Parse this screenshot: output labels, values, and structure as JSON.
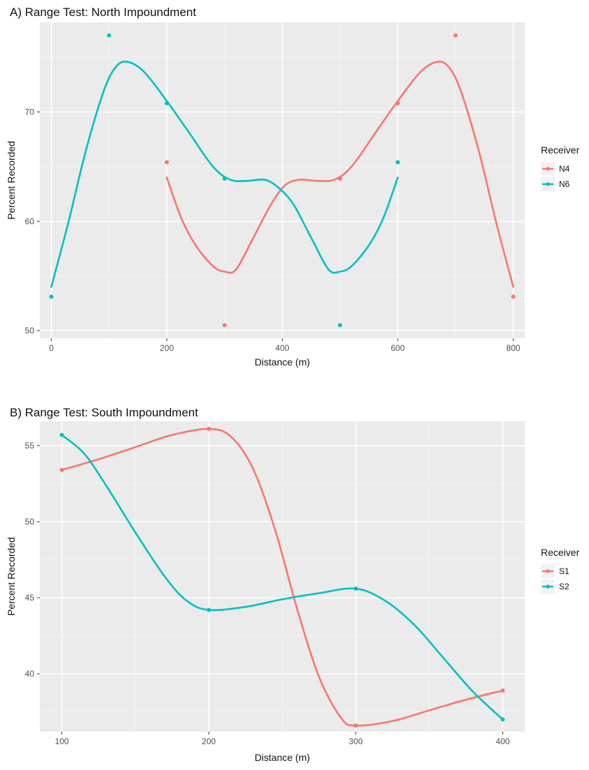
{
  "chart_data": [
    {
      "type": "line",
      "title": "A) Range Test: North Impoundment",
      "xlabel": "Distance (m)",
      "ylabel": "Percent Recorded",
      "xlim": [
        -20,
        820
      ],
      "ylim": [
        49.3,
        78.2
      ],
      "x_ticks": [
        0,
        200,
        400,
        600,
        800
      ],
      "y_ticks": [
        50,
        60,
        70
      ],
      "grid": true,
      "legend": {
        "title": "Receiver",
        "position": "right"
      },
      "series": [
        {
          "name": "N4",
          "color": "#F8766D",
          "points": [
            [
              200,
              65.4
            ],
            [
              300,
              50.5
            ],
            [
              500,
              63.9
            ],
            [
              600,
              70.8
            ],
            [
              700,
              77.0
            ],
            [
              800,
              53.1
            ]
          ],
          "smooth": [
            [
              200,
              64.0
            ],
            [
              225,
              60.3
            ],
            [
              250,
              57.8
            ],
            [
              280,
              55.9
            ],
            [
              300,
              55.4
            ],
            [
              320,
              55.6
            ],
            [
              350,
              58.5
            ],
            [
              380,
              61.5
            ],
            [
              405,
              63.3
            ],
            [
              430,
              63.8
            ],
            [
              460,
              63.7
            ],
            [
              490,
              63.8
            ],
            [
              520,
              65.0
            ],
            [
              560,
              68.0
            ],
            [
              600,
              71.0
            ],
            [
              640,
              73.7
            ],
            [
              670,
              74.6
            ],
            [
              690,
              74.0
            ],
            [
              710,
              71.8
            ],
            [
              740,
              66.5
            ],
            [
              770,
              60.0
            ],
            [
              800,
              54.0
            ]
          ]
        },
        {
          "name": "N6",
          "color": "#00BFC4",
          "points": [
            [
              0,
              53.1
            ],
            [
              100,
              77.0
            ],
            [
              200,
              70.8
            ],
            [
              300,
              63.9
            ],
            [
              500,
              50.5
            ],
            [
              600,
              65.4
            ]
          ],
          "smooth": [
            [
              0,
              54.0
            ],
            [
              30,
              60.0
            ],
            [
              60,
              66.5
            ],
            [
              90,
              71.8
            ],
            [
              110,
              74.0
            ],
            [
              130,
              74.6
            ],
            [
              160,
              73.7
            ],
            [
              200,
              71.0
            ],
            [
              240,
              68.0
            ],
            [
              280,
              65.0
            ],
            [
              310,
              63.8
            ],
            [
              340,
              63.7
            ],
            [
              370,
              63.8
            ],
            [
              395,
              63.0
            ],
            [
              420,
              61.5
            ],
            [
              450,
              58.5
            ],
            [
              480,
              55.6
            ],
            [
              500,
              55.4
            ],
            [
              520,
              55.9
            ],
            [
              550,
              57.8
            ],
            [
              575,
              60.3
            ],
            [
              600,
              64.0
            ]
          ]
        }
      ]
    },
    {
      "type": "line",
      "title": "B) Range Test: South Impoundment",
      "xlabel": "Distance (m)",
      "ylabel": "Percent Recorded",
      "xlim": [
        85,
        415
      ],
      "ylim": [
        36.2,
        56.6
      ],
      "x_ticks": [
        100,
        200,
        300,
        400
      ],
      "y_ticks": [
        40,
        45,
        50,
        55
      ],
      "grid": true,
      "legend": {
        "title": "Receiver",
        "position": "right"
      },
      "series": [
        {
          "name": "S1",
          "color": "#F8766D",
          "points": [
            [
              100,
              53.4
            ],
            [
              200,
              56.1
            ],
            [
              300,
              36.6
            ],
            [
              400,
              38.9
            ]
          ],
          "smooth": [
            [
              100,
              53.4
            ],
            [
              125,
              54.1
            ],
            [
              150,
              54.9
            ],
            [
              175,
              55.7
            ],
            [
              200,
              56.1
            ],
            [
              215,
              55.6
            ],
            [
              230,
              53.5
            ],
            [
              245,
              49.5
            ],
            [
              260,
              44.3
            ],
            [
              275,
              39.8
            ],
            [
              290,
              37.1
            ],
            [
              300,
              36.6
            ],
            [
              325,
              36.9
            ],
            [
              350,
              37.6
            ],
            [
              375,
              38.3
            ],
            [
              400,
              38.9
            ]
          ]
        },
        {
          "name": "S2",
          "color": "#00BFC4",
          "points": [
            [
              100,
              55.7
            ],
            [
              200,
              44.2
            ],
            [
              300,
              45.6
            ],
            [
              400,
              37.0
            ]
          ],
          "smooth": [
            [
              100,
              55.7
            ],
            [
              115,
              54.5
            ],
            [
              130,
              52.4
            ],
            [
              150,
              49.3
            ],
            [
              170,
              46.4
            ],
            [
              185,
              44.8
            ],
            [
              200,
              44.2
            ],
            [
              225,
              44.4
            ],
            [
              250,
              44.9
            ],
            [
              275,
              45.3
            ],
            [
              300,
              45.6
            ],
            [
              320,
              44.8
            ],
            [
              340,
              43.2
            ],
            [
              360,
              41.0
            ],
            [
              380,
              38.8
            ],
            [
              400,
              37.0
            ]
          ]
        }
      ]
    }
  ]
}
